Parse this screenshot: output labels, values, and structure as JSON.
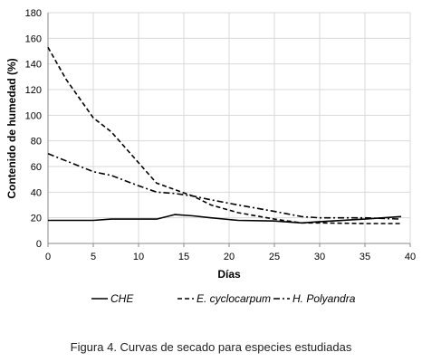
{
  "chart_data": {
    "type": "line",
    "xlabel": "Días",
    "ylabel": "Contenido de humedad (%)",
    "xlim": [
      0,
      40
    ],
    "ylim": [
      0,
      180
    ],
    "xticks": [
      0,
      5,
      10,
      15,
      20,
      25,
      30,
      35,
      40
    ],
    "yticks": [
      0,
      20,
      40,
      60,
      80,
      100,
      120,
      140,
      160,
      180
    ],
    "grid": "horizontal and vertical",
    "legend_position": "bottom",
    "series": [
      {
        "name": "CHE",
        "style": "solid",
        "x": [
          0,
          5,
          7,
          10,
          12,
          14,
          16,
          18,
          21,
          25,
          28,
          30,
          35,
          39
        ],
        "y": [
          18,
          18,
          19,
          19,
          19,
          22.5,
          21.5,
          20,
          18,
          17.5,
          16,
          17,
          19,
          21
        ]
      },
      {
        "name": "E. cyclocarpum",
        "style": "dashed",
        "x": [
          0,
          2,
          5,
          7,
          10,
          12,
          14,
          16,
          18,
          21,
          25,
          28,
          30,
          35,
          39
        ],
        "y": [
          153,
          128,
          98,
          87,
          63,
          47,
          42,
          37,
          30,
          24,
          19,
          16,
          16,
          15.5,
          15.5
        ]
      },
      {
        "name": "H. Polyandra",
        "style": "dashdot",
        "x": [
          0,
          5,
          7,
          10,
          12,
          14,
          16,
          18,
          21,
          25,
          28,
          30,
          35,
          39
        ],
        "y": [
          70,
          56,
          53,
          45,
          40,
          39,
          37,
          34,
          30,
          25,
          21,
          20,
          20,
          19
        ]
      }
    ]
  },
  "caption": "Figura 4. Curvas de secado para especies estudiadas",
  "colors": {
    "line": "#000000",
    "grid": "#d9d9d9",
    "axis": "#888888"
  }
}
